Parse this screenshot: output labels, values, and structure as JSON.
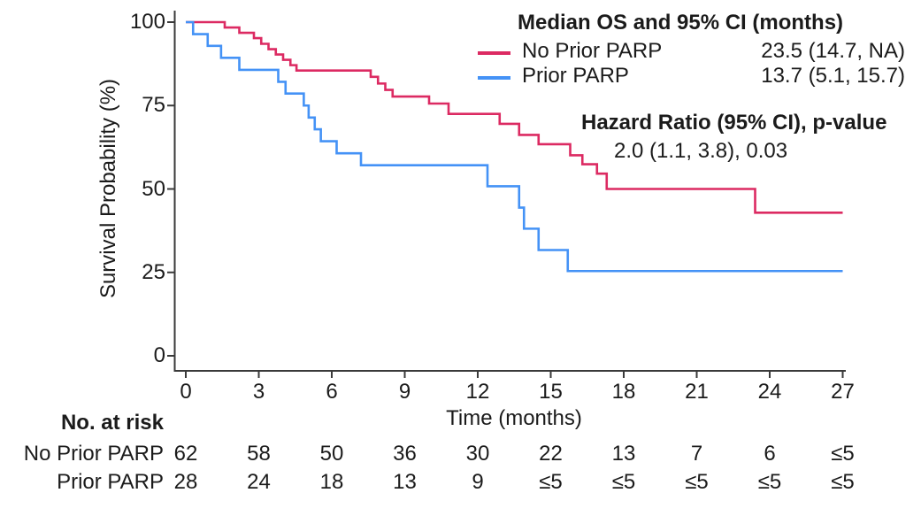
{
  "figure": {
    "background": "#ffffff",
    "text_color": "#1b1b1b",
    "axis_color": "#3a3a3a"
  },
  "chart_data": {
    "type": "line",
    "subtype": "kaplan-meier-step-survival",
    "title": "",
    "xlabel": "Time (months)",
    "ylabel": "Survival Probability (%)",
    "xlim": [
      0,
      27
    ],
    "ylim": [
      0,
      100
    ],
    "x_ticks": [
      0,
      3,
      6,
      9,
      12,
      15,
      18,
      21,
      24,
      27
    ],
    "y_ticks": [
      100,
      75,
      50,
      25,
      0
    ],
    "grid": false,
    "legend_position": "top-right",
    "series": [
      {
        "name": "No Prior PARP",
        "color": "#DC2A62",
        "median_os_95ci": "23.5 (14.7, NA)",
        "points": [
          [
            0,
            100
          ],
          [
            1.6,
            98.4
          ],
          [
            2.2,
            96.8
          ],
          [
            2.8,
            95.2
          ],
          [
            3.1,
            93.5
          ],
          [
            3.4,
            91.9
          ],
          [
            3.7,
            90.3
          ],
          [
            4.0,
            88.7
          ],
          [
            4.3,
            87.1
          ],
          [
            4.55,
            85.5
          ],
          [
            7.6,
            83.6
          ],
          [
            7.9,
            81.6
          ],
          [
            8.2,
            79.7
          ],
          [
            8.5,
            77.7
          ],
          [
            10.0,
            75.6
          ],
          [
            10.8,
            72.5
          ],
          [
            12.9,
            69.5
          ],
          [
            13.7,
            66.2
          ],
          [
            14.5,
            63.4
          ],
          [
            15.8,
            60.1
          ],
          [
            16.3,
            57.4
          ],
          [
            16.9,
            54.6
          ],
          [
            17.3,
            50.0
          ],
          [
            23.4,
            42.9
          ],
          [
            27,
            42.9
          ]
        ]
      },
      {
        "name": "Prior PARP",
        "color": "#4492F6",
        "median_os_95ci": "13.7 (5.1, 15.7)",
        "points": [
          [
            0,
            100
          ],
          [
            0.3,
            96.4
          ],
          [
            0.9,
            92.9
          ],
          [
            1.45,
            89.3
          ],
          [
            2.2,
            85.7
          ],
          [
            3.8,
            82.1
          ],
          [
            4.1,
            78.6
          ],
          [
            4.85,
            75.0
          ],
          [
            5.05,
            71.4
          ],
          [
            5.3,
            67.9
          ],
          [
            5.55,
            64.3
          ],
          [
            6.2,
            60.7
          ],
          [
            7.2,
            57.1
          ],
          [
            12.4,
            50.8
          ],
          [
            13.7,
            44.4
          ],
          [
            13.9,
            38.1
          ],
          [
            14.5,
            31.7
          ],
          [
            15.7,
            25.4
          ],
          [
            27,
            25.4
          ]
        ]
      }
    ]
  },
  "legend": {
    "title": "Median OS and 95% CI (months)",
    "rows": [
      {
        "label": "No Prior PARP",
        "value": "23.5 (14.7, NA)",
        "color": "#DC2A62"
      },
      {
        "label": "Prior PARP",
        "value": "13.7 (5.1, 15.7)",
        "color": "#4492F6"
      }
    ],
    "hazard_title": "Hazard Ratio (95% CI), p-value",
    "hazard_value": "2.0 (1.1, 3.8), 0.03"
  },
  "axes": {
    "xlabel": "Time (months)",
    "ylabel": "Survival Probability (%)"
  },
  "risk_table": {
    "header": "No. at risk",
    "time_points": [
      0,
      3,
      6,
      9,
      12,
      15,
      18,
      21,
      24,
      27
    ],
    "rows": [
      {
        "label": "No Prior PARP",
        "values": [
          "62",
          "58",
          "50",
          "36",
          "30",
          "22",
          "13",
          "7",
          "6",
          "≤5"
        ]
      },
      {
        "label": "Prior PARP",
        "values": [
          "28",
          "24",
          "18",
          "13",
          "9",
          "≤5",
          "≤5",
          "≤5",
          "≤5",
          "≤5"
        ]
      }
    ]
  }
}
